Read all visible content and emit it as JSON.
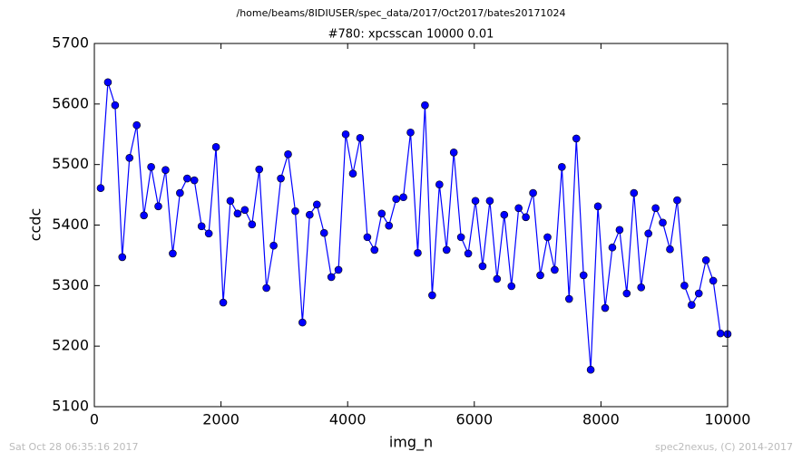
{
  "chart_data": {
    "type": "line",
    "suptitle": "/home/beams/8IDIUSER/spec_data/2017/Oct2017/bates20171024",
    "title": "#780: xpcsscan 10000 0.01",
    "xlabel": "img_n",
    "ylabel": "ccdc",
    "footer_left": "Sat Oct 28 06:35:16 2017",
    "footer_right": "spec2nexus, (C) 2014-2017",
    "color": "#0000ff",
    "x": [
      100,
      214,
      328,
      441,
      555,
      669,
      783,
      897,
      1010,
      1124,
      1238,
      1352,
      1466,
      1579,
      1693,
      1807,
      1921,
      2035,
      2148,
      2262,
      2376,
      2490,
      2604,
      2717,
      2831,
      2945,
      3059,
      3173,
      3286,
      3400,
      3514,
      3628,
      3742,
      3855,
      3969,
      4083,
      4197,
      4311,
      4424,
      4538,
      4652,
      4766,
      4880,
      4993,
      5107,
      5221,
      5335,
      5449,
      5562,
      5676,
      5790,
      5904,
      6018,
      6131,
      6245,
      6359,
      6473,
      6587,
      6700,
      6814,
      6928,
      7042,
      7156,
      7269,
      7383,
      7497,
      7611,
      7725,
      7838,
      7952,
      8066,
      8180,
      8294,
      8407,
      8521,
      8635,
      8749,
      8863,
      8976,
      9090,
      9204,
      9318,
      9432,
      9545,
      9659,
      9773,
      9887,
      10000
    ],
    "values": [
      5461,
      5636,
      5598,
      5347,
      5511,
      5565,
      5416,
      5496,
      5431,
      5491,
      5353,
      5453,
      5477,
      5474,
      5398,
      5386,
      5529,
      5272,
      5440,
      5419,
      5425,
      5401,
      5492,
      5296,
      5366,
      5477,
      5517,
      5423,
      5239,
      5417,
      5434,
      5387,
      5314,
      5326,
      5550,
      5485,
      5544,
      5380,
      5359,
      5419,
      5399,
      5443,
      5446,
      5553,
      5354,
      5598,
      5284,
      5467,
      5359,
      5520,
      5380,
      5353,
      5440,
      5332,
      5440,
      5311,
      5417,
      5299,
      5428,
      5413,
      5453,
      5317,
      5380,
      5326,
      5496,
      5278,
      5543,
      5317,
      5161,
      5431,
      5263,
      5363,
      5392,
      5287,
      5453,
      5297,
      5386,
      5428,
      5404,
      5360,
      5441,
      5300,
      5268,
      5287,
      5342,
      5308,
      5221,
      5220
    ],
    "xlim": [
      0,
      10000
    ],
    "xticks": [
      0,
      2000,
      4000,
      6000,
      8000,
      10000
    ],
    "ylim": [
      5100,
      5700
    ],
    "yticks": [
      5100,
      5200,
      5300,
      5400,
      5500,
      5600,
      5700
    ]
  }
}
